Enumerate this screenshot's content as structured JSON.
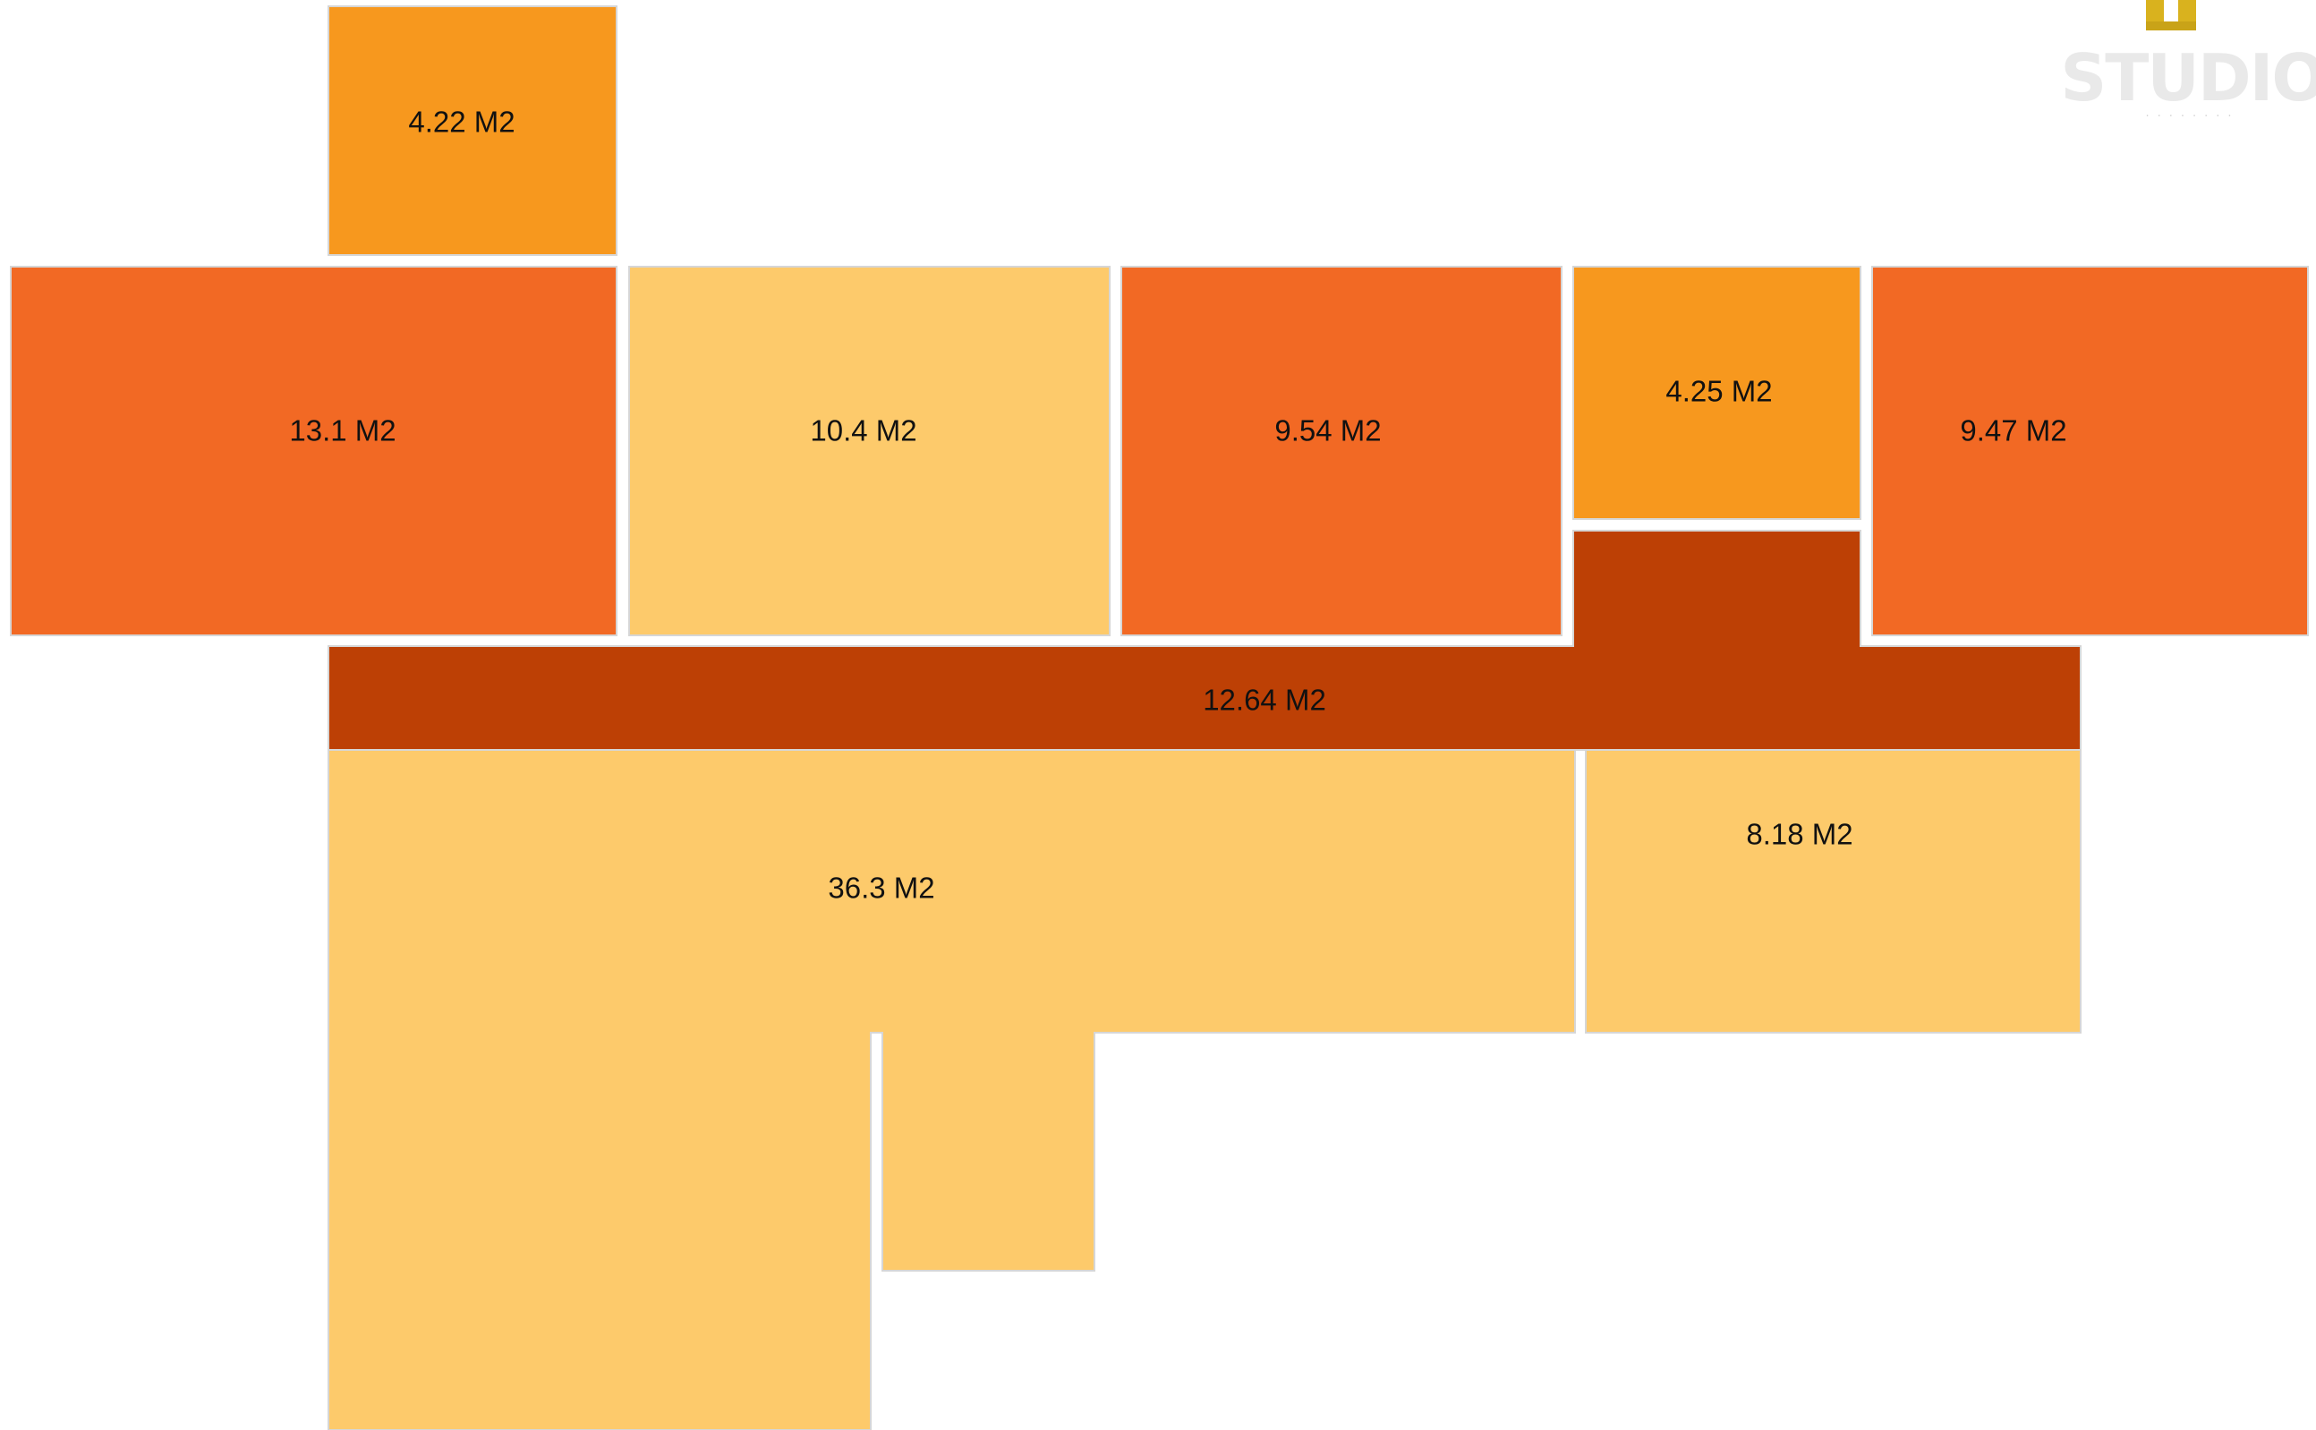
{
  "colors": {
    "light": "#FDCA6B",
    "orange": "#F7981E",
    "red_orange": "#F26924",
    "dark": "#BD4005",
    "border": "#d6d6d6"
  },
  "logo": {
    "text": "STUDIO"
  },
  "rooms": [
    {
      "id": "room-a",
      "label": "4.22 M2",
      "fill": "orange"
    },
    {
      "id": "room-b",
      "label": "13.1 M2",
      "fill": "red_orange"
    },
    {
      "id": "room-c",
      "label": "10.4 M2",
      "fill": "light"
    },
    {
      "id": "room-d",
      "label": "9.54 M2",
      "fill": "red_orange"
    },
    {
      "id": "room-e",
      "label": "4.25 M2",
      "fill": "orange"
    },
    {
      "id": "room-f",
      "label": "9.47 M2",
      "fill": "red_orange"
    },
    {
      "id": "room-g",
      "label": "12.64 M2",
      "fill": "dark"
    },
    {
      "id": "room-h",
      "label": "36.3 M2",
      "fill": "light"
    },
    {
      "id": "room-i",
      "label": "8.18 M2",
      "fill": "light"
    }
  ]
}
